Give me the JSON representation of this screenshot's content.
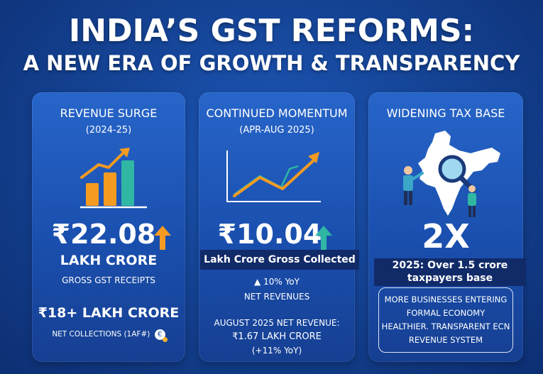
{
  "title": {
    "line1": "INDIA’S GST REFORMS:",
    "line2": "A NEW ERA OF GROWTH & TRANSPARENCY"
  },
  "cards": [
    {
      "heading": "REVENUE SURGE",
      "period": "(2024-25)",
      "big_value": "₹22.08",
      "unit": "LAKH CRORE",
      "caption": "GROSS GST RECEIPTS",
      "secondary_value": "₹18+ LAKH CRORE",
      "secondary_caption": "NET COLLECTIONS (1AF#)",
      "coin_symbol": "€"
    },
    {
      "heading": "CONTINUED MOMENTUM",
      "period": "(APR-AUG 2025)",
      "big_value": "₹10.04",
      "banner": "Lakh Crore Gross Collected",
      "growth": "10% YoY",
      "growth_caption": "NET REVENUES",
      "aug_label": "AUGUST 2025 NET REVENUE:",
      "aug_value": "₹1.67 LAKH CRORE",
      "aug_growth": "(+11% YoY)"
    },
    {
      "heading": "WIDENING TAX BASE",
      "multiplier": "2X",
      "banner_line1": "2025: Over 1.5 crore",
      "banner_line2": "taxpayers base",
      "info_line1": "MORE BUSINESSES ENTERING",
      "info_line2": "FORMAL ECONOMY",
      "info_line3": "HEALTHIER. TRANSPARENT ECN",
      "info_line4": "REVENUE SYSTEM"
    }
  ],
  "colors": {
    "orange": "#f59b22",
    "teal": "#2fb7a4",
    "navy": "#112b69"
  }
}
